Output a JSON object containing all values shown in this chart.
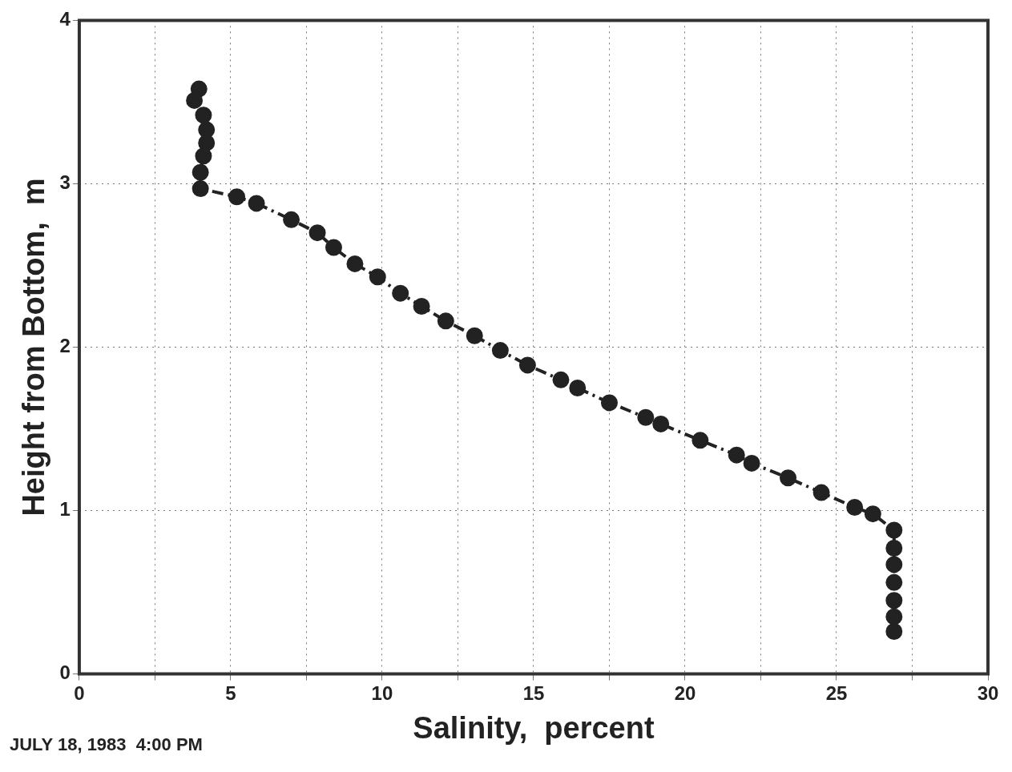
{
  "chart_data": {
    "type": "line",
    "xlabel": "Salinity,  percent",
    "ylabel": "Height from Bottom,  m",
    "annotations": [
      "JULY 18, 1983  4:00 PM"
    ],
    "xlim": [
      0,
      30
    ],
    "ylim": [
      0,
      4
    ],
    "xticks": [
      0,
      {
        "value": 2.5,
        "label": null
      },
      5,
      {
        "value": 7.5,
        "label": null
      },
      10,
      {
        "value": 12.5,
        "label": null
      },
      15,
      {
        "value": 17.5,
        "label": null
      },
      20,
      {
        "value": 22.5,
        "label": null
      },
      25,
      {
        "value": 27.5,
        "label": null
      },
      30
    ],
    "yticks": [
      0,
      1,
      2,
      3,
      4
    ],
    "grid": true,
    "marker": "circle",
    "line_style": "dashed",
    "legend": false,
    "series": [
      {
        "color": "#222222",
        "x": [
          3.95,
          3.8,
          4.1,
          4.2,
          4.2,
          4.1,
          4.0,
          4.0,
          5.2,
          5.85,
          7.0,
          7.86,
          8.4,
          9.1,
          9.85,
          10.6,
          11.3,
          12.1,
          13.05,
          13.9,
          14.8,
          15.9,
          16.45,
          17.5,
          18.7,
          19.2,
          20.5,
          21.7,
          22.2,
          23.4,
          24.5,
          25.6,
          26.2,
          26.9,
          26.9,
          26.9,
          26.9,
          26.9,
          26.9,
          26.9
        ],
        "values": [
          3.58,
          3.51,
          3.42,
          3.33,
          3.25,
          3.17,
          3.07,
          2.97,
          2.92,
          2.88,
          2.78,
          2.7,
          2.61,
          2.51,
          2.43,
          2.33,
          2.25,
          2.16,
          2.07,
          1.98,
          1.89,
          1.8,
          1.75,
          1.66,
          1.57,
          1.53,
          1.43,
          1.34,
          1.29,
          1.2,
          1.11,
          1.02,
          0.98,
          0.88,
          0.77,
          0.67,
          0.56,
          0.45,
          0.35,
          0.26
        ]
      }
    ]
  }
}
